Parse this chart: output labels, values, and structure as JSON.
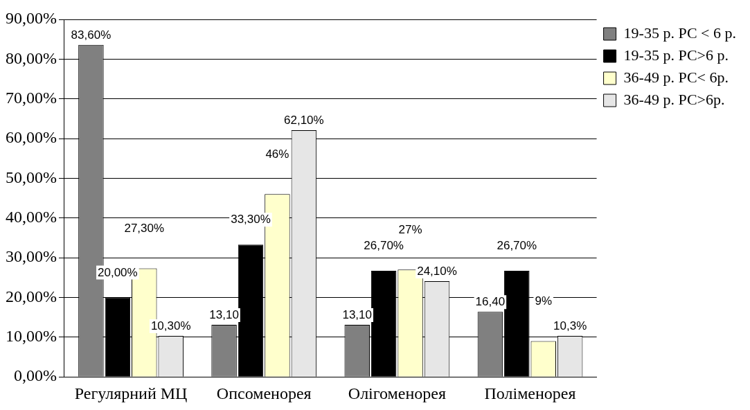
{
  "chart_data": {
    "type": "bar",
    "categories": [
      "Регулярний МЦ",
      "Опсоменорея",
      "Олігоменорея",
      "Поліменорея"
    ],
    "series": [
      {
        "name": "19-35 р. РС < 6 р.",
        "color": "#808080",
        "values": [
          83.6,
          13.1,
          13.1,
          16.4
        ],
        "value_labels": [
          "83,60%",
          "13,10",
          "13,10",
          "16,40"
        ]
      },
      {
        "name": "19-35 р. РС>6 р.",
        "color": "#000000",
        "values": [
          20.0,
          33.3,
          26.7,
          26.7
        ],
        "value_labels": [
          "20,00%",
          "33,30%",
          "26,70%",
          "26,70%"
        ]
      },
      {
        "name": "36-49 р. РС< 6р.",
        "color": "#ffffcc",
        "values": [
          27.3,
          46,
          27,
          9
        ],
        "value_labels": [
          "27,30%",
          "46%",
          "27%",
          "9%"
        ]
      },
      {
        "name": "36-49 р. РС>6р.",
        "color": "#e6e6e6",
        "values": [
          10.3,
          62.1,
          24.1,
          10.3
        ],
        "value_labels": [
          "10,30%",
          "62,10%",
          "24,10%",
          "10,3%"
        ]
      }
    ],
    "ylim": [
      0,
      90
    ],
    "yticks": [
      {
        "value": 0,
        "label": "0,00%"
      },
      {
        "value": 10,
        "label": "10,00%"
      },
      {
        "value": 20,
        "label": "20,00%"
      },
      {
        "value": 30,
        "label": "30,00%"
      },
      {
        "value": 40,
        "label": "40,00%"
      },
      {
        "value": 50,
        "label": "50,00%"
      },
      {
        "value": 60,
        "label": "60,00%"
      },
      {
        "value": 70,
        "label": "70,00%"
      },
      {
        "value": 80,
        "label": "80,00%"
      },
      {
        "value": 90,
        "label": "90,00%"
      }
    ],
    "grid": "y",
    "legend": "right"
  }
}
